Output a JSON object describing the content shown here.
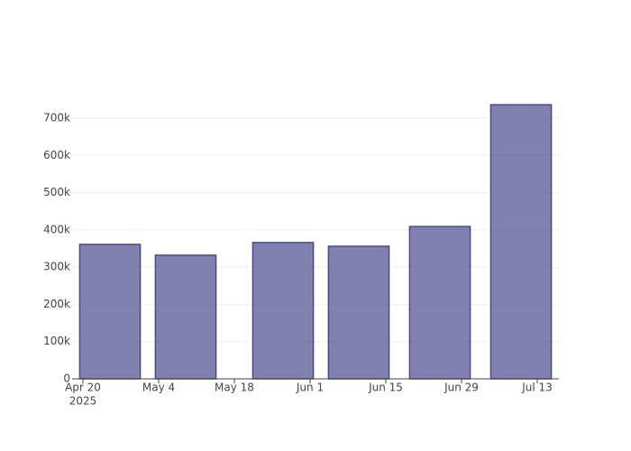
{
  "chart_data": {
    "type": "bar",
    "x": [
      "2025-04-25",
      "2025-05-09",
      "2025-05-27",
      "2025-06-10",
      "2025-06-25",
      "2025-07-10"
    ],
    "values": [
      361000,
      332000,
      366000,
      356000,
      409000,
      736000
    ],
    "color": "rgba(55,55,130,0.63)",
    "edge_color": "#4b4b86",
    "xlim": [
      "2025-04-18",
      "2025-07-17"
    ],
    "xticks": [
      {
        "value": "2025-04-20",
        "label": "Apr 20"
      },
      {
        "value": "2025-05-04",
        "label": "May 4"
      },
      {
        "value": "2025-05-18",
        "label": "May 18"
      },
      {
        "value": "2025-06-01",
        "label": "Jun 1"
      },
      {
        "value": "2025-06-15",
        "label": "Jun 15"
      },
      {
        "value": "2025-06-29",
        "label": "Jun 29"
      },
      {
        "value": "2025-07-13",
        "label": "Jul 13"
      }
    ],
    "year_label": "2025",
    "ylim": [
      0,
      775000
    ],
    "yticks": [
      0,
      {
        "value": 100000,
        "label": "100k"
      },
      {
        "value": 200000,
        "label": "200k"
      },
      {
        "value": 300000,
        "label": "300k"
      },
      {
        "value": 400000,
        "label": "400k"
      },
      {
        "value": 500000,
        "label": "500k"
      },
      {
        "value": 600000,
        "label": "600k"
      },
      {
        "value": 700000,
        "label": "700k"
      }
    ],
    "grid": true
  }
}
